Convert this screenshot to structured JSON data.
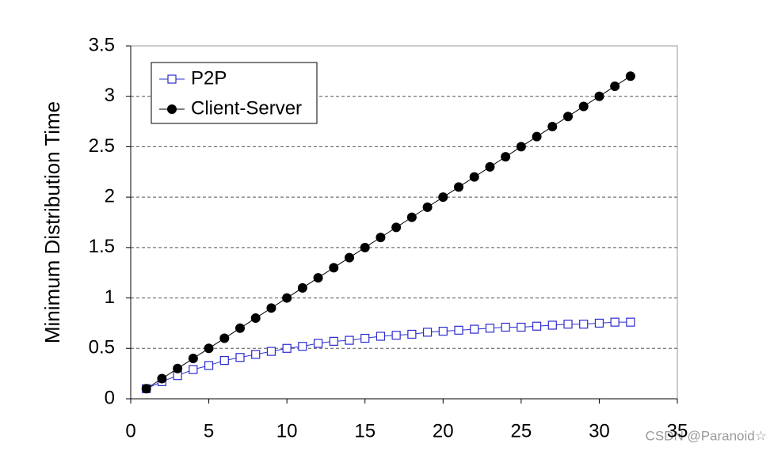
{
  "chart_data": {
    "type": "line",
    "ylabel": "Minimum Distribution Time",
    "x": [
      1,
      2,
      3,
      4,
      5,
      6,
      7,
      8,
      9,
      10,
      11,
      12,
      13,
      14,
      15,
      16,
      17,
      18,
      19,
      20,
      21,
      22,
      23,
      24,
      25,
      26,
      27,
      28,
      29,
      30,
      31,
      32
    ],
    "series": [
      {
        "name": "P2P",
        "color": "#2b2bd0",
        "marker": "open-square",
        "values": [
          0.1,
          0.17,
          0.23,
          0.29,
          0.33,
          0.38,
          0.41,
          0.44,
          0.47,
          0.5,
          0.52,
          0.55,
          0.57,
          0.58,
          0.6,
          0.62,
          0.63,
          0.64,
          0.66,
          0.67,
          0.68,
          0.69,
          0.7,
          0.71,
          0.71,
          0.72,
          0.73,
          0.74,
          0.74,
          0.75,
          0.76,
          0.76
        ]
      },
      {
        "name": "Client-Server",
        "color": "#000000",
        "marker": "filled-circle",
        "values": [
          0.1,
          0.2,
          0.3,
          0.4,
          0.5,
          0.6,
          0.7,
          0.8,
          0.9,
          1,
          1.1,
          1.2,
          1.3,
          1.4,
          1.5,
          1.6,
          1.7,
          1.8,
          1.9,
          2,
          2.1,
          2.2,
          2.3,
          2.4,
          2.5,
          2.6,
          2.7,
          2.8,
          2.9,
          3,
          3.1,
          3.2
        ]
      }
    ],
    "xlim": [
      0,
      35
    ],
    "xticks": [
      0,
      5,
      10,
      15,
      20,
      25,
      30,
      35
    ],
    "ylim": [
      0,
      3.5
    ],
    "yticks": [
      0,
      0.5,
      1,
      1.5,
      2,
      2.5,
      3,
      3.5
    ],
    "grid": true,
    "legend": "upper-left",
    "watermark": "CSDN @Paranoid☆"
  }
}
